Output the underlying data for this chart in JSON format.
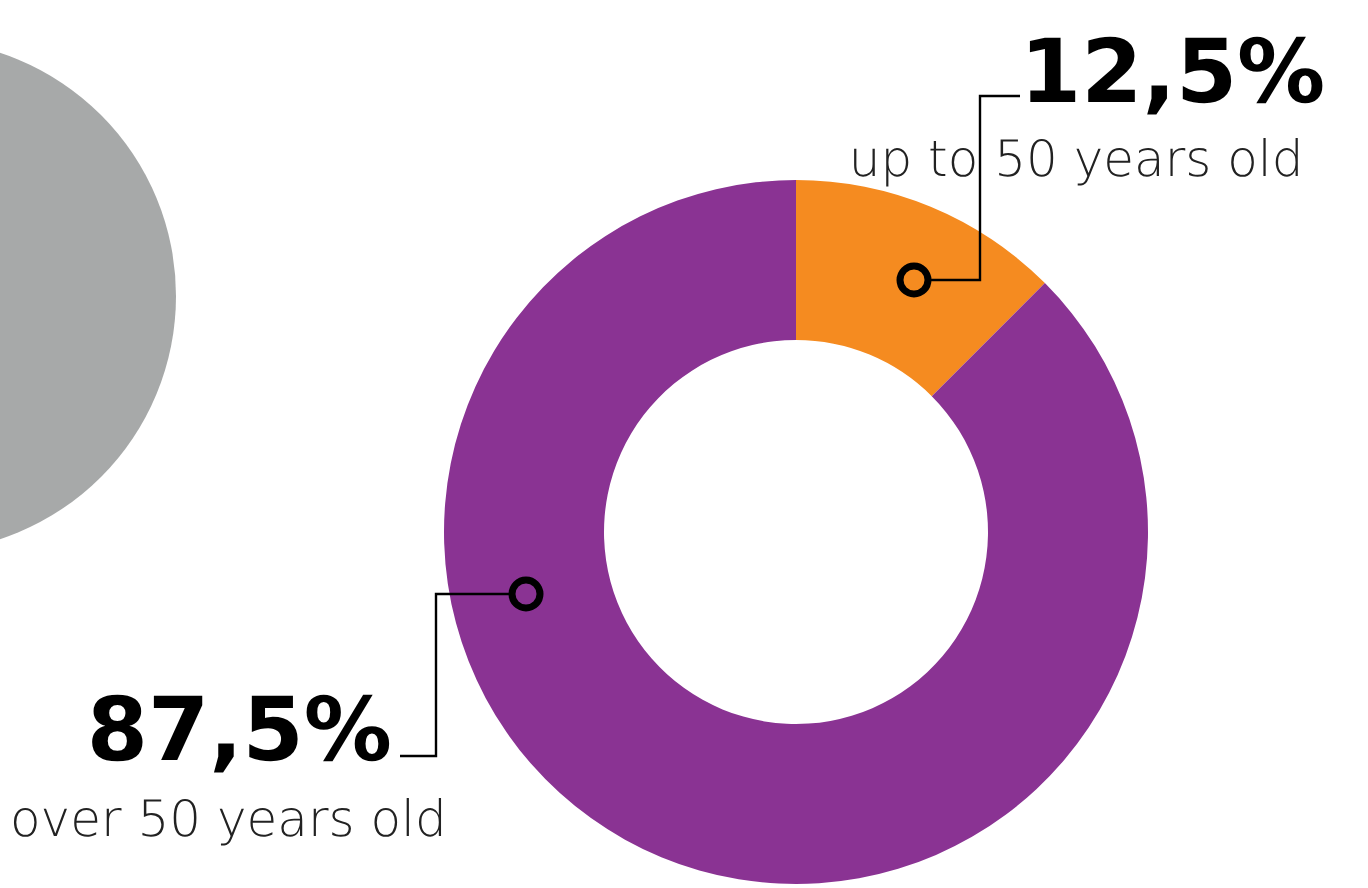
{
  "chart_data": {
    "type": "donut",
    "categories": [
      "up to 50 years old",
      "over 50 years old"
    ],
    "values": [
      12.5,
      87.5
    ],
    "colors": [
      "#f58b20",
      "#8a3393"
    ],
    "value_labels": [
      "12,5%",
      "87,5%"
    ]
  }
}
